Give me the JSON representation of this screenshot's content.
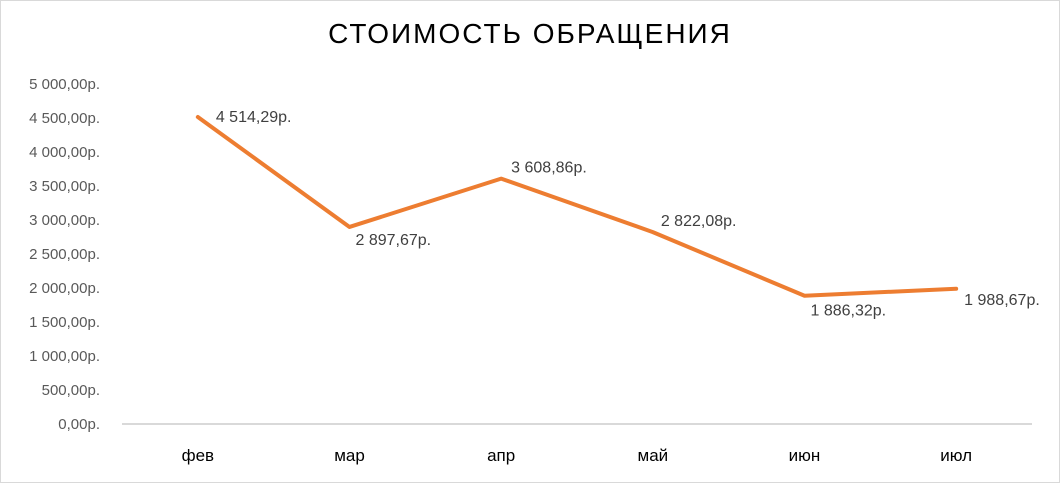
{
  "chart_data": {
    "type": "line",
    "title": "СТОИМОСТЬ ОБРАЩЕНИЯ",
    "xlabel": "",
    "ylabel": "",
    "categories": [
      "фев",
      "мар",
      "апр",
      "май",
      "июн",
      "июл"
    ],
    "series": [
      {
        "values": [
          4514.29,
          2897.67,
          3608.86,
          2822.08,
          1886.32,
          1988.67
        ],
        "data_labels": [
          "4 514,29р.",
          "2 897,67р.",
          "3 608,86р.",
          "2 822,08р.",
          "1 886,32р.",
          "1 988,67р."
        ],
        "color": "#ED7D31"
      }
    ],
    "ylim": [
      0,
      5000
    ],
    "yticks": [
      0,
      500,
      1000,
      1500,
      2000,
      2500,
      3000,
      3500,
      4000,
      4500,
      5000
    ],
    "ytick_labels": [
      "0,00р.",
      "500,00р.",
      "1 000,00р.",
      "1 500,00р.",
      "2 000,00р.",
      "2 500,00р.",
      "3 000,00р.",
      "3 500,00р.",
      "4 000,00р.",
      "4 500,00р.",
      "5 000,00р."
    ],
    "grid": false,
    "legend": "none",
    "axis_color": "#d9d9d9"
  }
}
